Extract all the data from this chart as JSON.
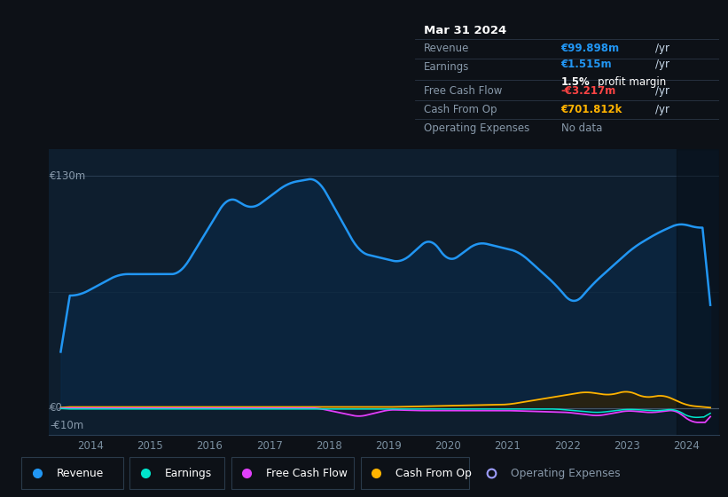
{
  "bg_color": "#0d1117",
  "plot_bg_color": "#0e1e2e",
  "title": "Mar 31 2024",
  "y_label_top": "€130m",
  "y_label_zero": "€0",
  "y_label_bottom": "-€10m",
  "ylim": [
    -15,
    145
  ],
  "xlim": [
    2013.3,
    2024.55
  ],
  "revenue_color": "#2196f3",
  "earnings_color": "#00e5cc",
  "fcf_color": "#e040fb",
  "cashfromop_color": "#ffb300",
  "opex_color": "#9e9eff",
  "info_box": {
    "date": "Mar 31 2024",
    "revenue_label": "Revenue",
    "revenue_value": "€99.898m",
    "earnings_label": "Earnings",
    "earnings_value": "€1.515m",
    "margin_text": "1.5% profit margin",
    "fcf_label": "Free Cash Flow",
    "fcf_value": "-€3.217m",
    "cashop_label": "Cash From Op",
    "cashop_value": "€701.812k",
    "opex_label": "Operating Expenses",
    "opex_value": "No data"
  },
  "legend": [
    {
      "label": "Revenue",
      "color": "#2196f3",
      "filled": true
    },
    {
      "label": "Earnings",
      "color": "#00e5cc",
      "filled": true
    },
    {
      "label": "Free Cash Flow",
      "color": "#e040fb",
      "filled": true
    },
    {
      "label": "Cash From Op",
      "color": "#ffb300",
      "filled": true
    },
    {
      "label": "Operating Expenses",
      "color": "#9e9eff",
      "filled": false
    }
  ]
}
